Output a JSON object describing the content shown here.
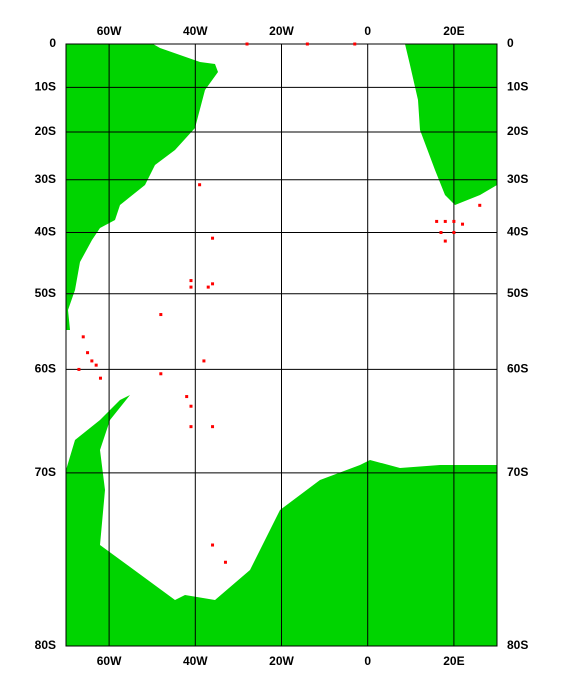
{
  "chart_data": {
    "type": "map",
    "projection": "mercator",
    "grid": true,
    "land_color": "#00d400",
    "grid_color": "#000000",
    "xlim": [
      -70,
      30
    ],
    "ylim": [
      -80,
      0
    ],
    "xticks": [
      {
        "value": -60,
        "label": "60W"
      },
      {
        "value": -40,
        "label": "40W"
      },
      {
        "value": -20,
        "label": "20W"
      },
      0,
      {
        "value": 20,
        "label": "20E"
      }
    ],
    "yticks": [
      0,
      {
        "value": -10,
        "label": "10S"
      },
      {
        "value": -20,
        "label": "20S"
      },
      {
        "value": -30,
        "label": "30S"
      },
      {
        "value": -40,
        "label": "40S"
      },
      {
        "value": -50,
        "label": "50S"
      },
      {
        "value": -60,
        "label": "60S"
      },
      {
        "value": -70,
        "label": "70S"
      },
      {
        "value": -80,
        "label": "80S"
      }
    ],
    "points": {
      "color": "#ff0000",
      "x": [
        -39,
        -36,
        -41,
        -41,
        -37,
        -36,
        -48,
        -38,
        -48,
        -42,
        -41,
        -41,
        -36,
        -66,
        -65,
        -64,
        -63,
        -67,
        -62,
        -36,
        -33,
        16,
        18,
        20,
        22,
        26,
        17,
        18,
        20,
        -28,
        -14,
        -3
      ],
      "y": [
        -31,
        -41,
        -48,
        -49,
        -49,
        -48.5,
        -53,
        -59,
        -60.5,
        -63,
        -64,
        -66,
        -66,
        -56,
        -58,
        -59,
        -59.5,
        -60,
        -61,
        -75,
        -76,
        -38,
        -38,
        -38,
        -38.5,
        -35,
        -40,
        -41.5,
        -40,
        0,
        0,
        0
      ]
    }
  }
}
